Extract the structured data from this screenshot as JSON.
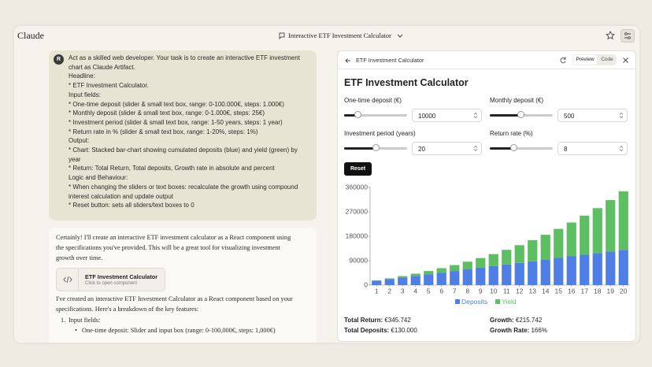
{
  "header": {
    "app_name": "Claude",
    "title": "Interactive ETF Investment Calculator"
  },
  "chat": {
    "user_avatar": "R",
    "user_message": [
      "Act as a skilled web developer. Your task is to create an interactive ETF investment chart as Claude Artifact.",
      "Headline:",
      "* ETF Investment Calculator.",
      "Input fields:",
      "* One-time deposit (slider & small text box, range: 0-100.000€, steps: 1.000€)",
      "* Monthly deposit (slider & small  text box, range: 0-1.000€, steps: 25€)",
      "* Investment period  (slider & small  text box, range: 1-50 years, steps: 1 year)",
      "* Return rate in %  (slider & small  text box, range: 1-20%, steps: 1%)",
      "Output:",
      "* Chart: Stacked bar-chart showing cumulated deposits (blue) and yield (green) by year",
      "* Return: Total Return, Total deposits, Growth rate in absolute and percent",
      "Logic and Behaviour:",
      "* When changing the sliders or text boxes: recalculate the growth using compound interest calculation and update output",
      "* Reset button: sets all sliders/text boxes to 0"
    ],
    "assistant_intro": "Certainly! I'll create an interactive ETF investment calculator as a React component using the specifications you've provided. This will be a great tool for visualizing investment growth over time.",
    "artifact_card": {
      "title": "ETF Investment Calculator",
      "subtitle": "Click to open component"
    },
    "assistant_text": "I've created an interactive ETF Investment Calculator as a React component based on your specifications. Here's a breakdown of the key features:",
    "list_item": "Input fields:",
    "sub_item": "One-time deposit: Slider and input box (range: 0-100,000€, steps: 1,000€)"
  },
  "artifact": {
    "header_title": "ETF Investment Calculator",
    "tabs": [
      "Preview",
      "Code"
    ],
    "title": "ETF Investment Calculator",
    "fields": [
      {
        "label": "One-time deposit (€)",
        "value": 10000
      },
      {
        "label": "Monthly deposit (€)",
        "value": 500
      },
      {
        "label": "Investment period (years)",
        "value": 20
      },
      {
        "label": "Return rate (%)",
        "value": 8
      }
    ],
    "reset": "Reset",
    "summary": [
      {
        "label": "Total Return:",
        "value": "€345.742"
      },
      {
        "label": "Growth:",
        "value": "€215.742"
      },
      {
        "label": "Total Deposits:",
        "value": "€130.000"
      },
      {
        "label": "Growth Rate:",
        "value": "166%"
      }
    ]
  },
  "chart_data": {
    "type": "bar",
    "stacked": true,
    "categories": [
      "1",
      "2",
      "3",
      "4",
      "5",
      "6",
      "7",
      "8",
      "9",
      "10",
      "11",
      "12",
      "13",
      "14",
      "15",
      "16",
      "17",
      "18",
      "19",
      "20"
    ],
    "series": [
      {
        "name": "Deposits",
        "color": "#4f7fe6",
        "values": [
          16000,
          22000,
          28000,
          34000,
          40000,
          46000,
          52000,
          58000,
          64000,
          70000,
          76000,
          82000,
          88000,
          94000,
          100000,
          106000,
          112000,
          118000,
          124000,
          130000
        ]
      },
      {
        "name": "Yield",
        "color": "#5dbf62",
        "values": [
          1097,
          2782,
          5106,
          8120,
          11882,
          16454,
          21904,
          28305,
          35735,
          44279,
          54031,
          65090,
          77565,
          91573,
          107242,
          124710,
          144125,
          165650,
          189458,
          215742
        ]
      }
    ],
    "ylim": [
      0,
      360000
    ],
    "yticks": [
      0,
      90000,
      180000,
      270000,
      360000
    ],
    "grid": false
  }
}
